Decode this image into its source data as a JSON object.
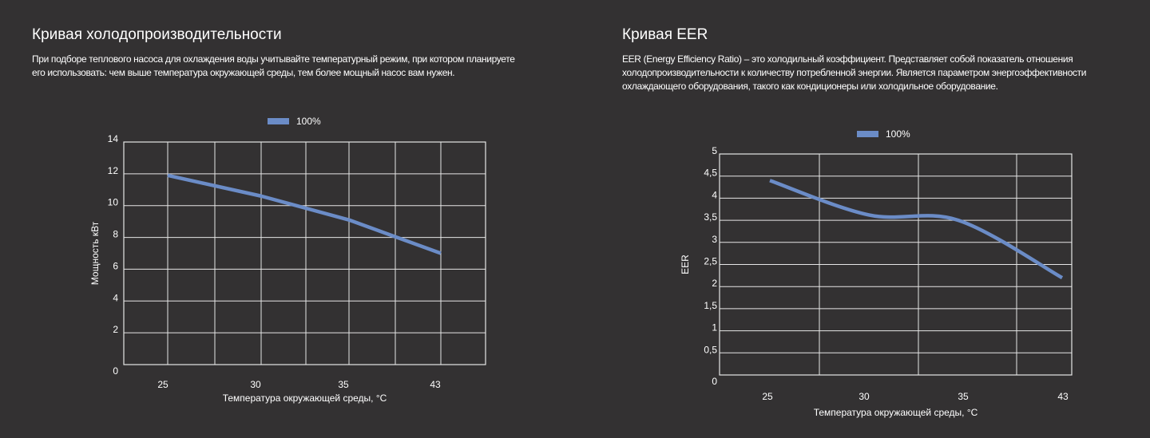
{
  "sections": [
    {
      "title": "Кривая холодопроизводительности",
      "description_lines": [
        "При подборе теплового насоса для охлаждения воды учитывайте температурный режим, при котором планируете",
        "его использовать: чем выше температура окружающей среды, тем более мощный насос вам нужен."
      ]
    },
    {
      "title": "Кривая EER",
      "description_lines": [
        "EER (Energy Efficiency Ratio) – это холодильный коэффициент. Представляет собой показатель отношения",
        "холодопроизводительности к количеству потребленной энергии. Является параметром энергоэффективности",
        "охлаждающего оборудования, такого как кондиционеры или холодильное оборудование."
      ]
    }
  ],
  "colors": {
    "background": "#333132",
    "line": "#6b8cc7",
    "grid": "#e6e6e6"
  },
  "chart_data": [
    {
      "type": "line",
      "title": "Кривая холодопроизводительности",
      "xlabel": "Температура окружающей среды, °C",
      "ylabel": "Мощность кВт",
      "legend": [
        "100%"
      ],
      "legend_position": "top-center",
      "categories": [
        "25",
        "30",
        "35",
        "43"
      ],
      "ylim": [
        0,
        14
      ],
      "yticks": [
        "0",
        "2",
        "4",
        "6",
        "8",
        "10",
        "12",
        "14"
      ],
      "grid": true,
      "smooth": false,
      "series": [
        {
          "name": "100%",
          "values": [
            11.9,
            10.6,
            9.1,
            7.0
          ]
        }
      ]
    },
    {
      "type": "line",
      "title": "Кривая EER",
      "xlabel": "Температура окружающей среды, °C",
      "ylabel": "EER",
      "legend": [
        "100%"
      ],
      "legend_position": "top-center",
      "categories": [
        "25",
        "30",
        "35",
        "43"
      ],
      "ylim": [
        0,
        5
      ],
      "yticks": [
        "0",
        "0,5",
        "1",
        "1,5",
        "2",
        "2,5",
        "3",
        "3,5",
        "4",
        "4,5",
        "5"
      ],
      "grid": true,
      "smooth": true,
      "series": [
        {
          "name": "100%",
          "values": [
            4.4,
            3.62,
            3.5,
            2.2
          ]
        }
      ]
    }
  ]
}
